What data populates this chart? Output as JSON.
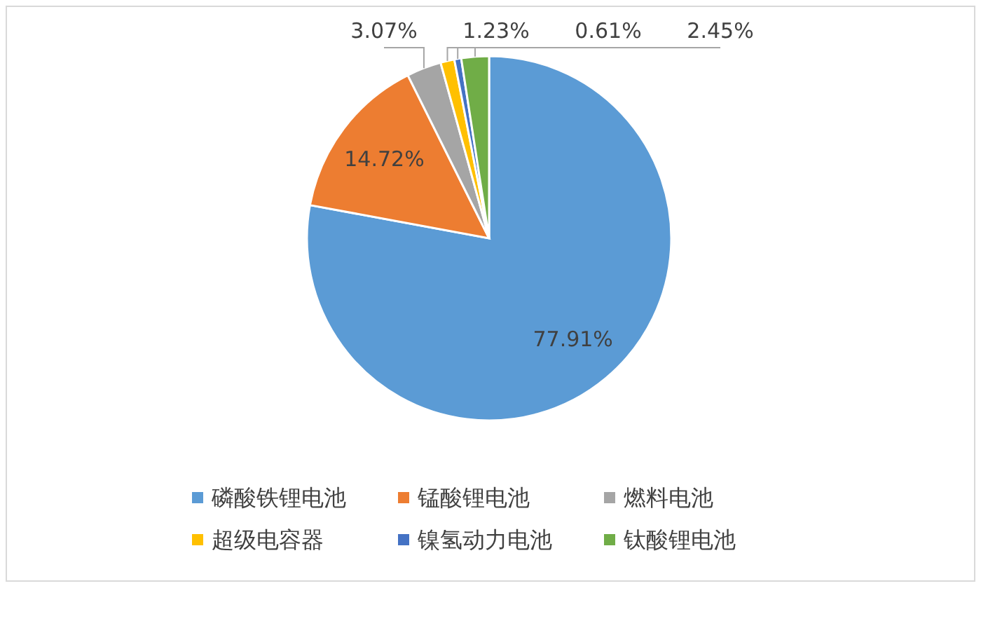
{
  "chart_data": {
    "type": "pie",
    "categories": [
      "磷酸铁锂电池",
      "锰酸锂电池",
      "燃料电池",
      "超级电容器",
      "镍氢动力电池",
      "钛酸锂电池"
    ],
    "values": [
      77.91,
      14.72,
      3.07,
      1.23,
      0.61,
      2.45
    ],
    "colors": [
      "#5b9bd5",
      "#ed7d31",
      "#a5a5a5",
      "#ffc000",
      "#4472c4",
      "#70ad47"
    ],
    "value_labels": [
      "77.91%",
      "14.72%",
      "3.07%",
      "1.23%",
      "0.61%",
      "2.45%"
    ],
    "legend": "bottom"
  }
}
